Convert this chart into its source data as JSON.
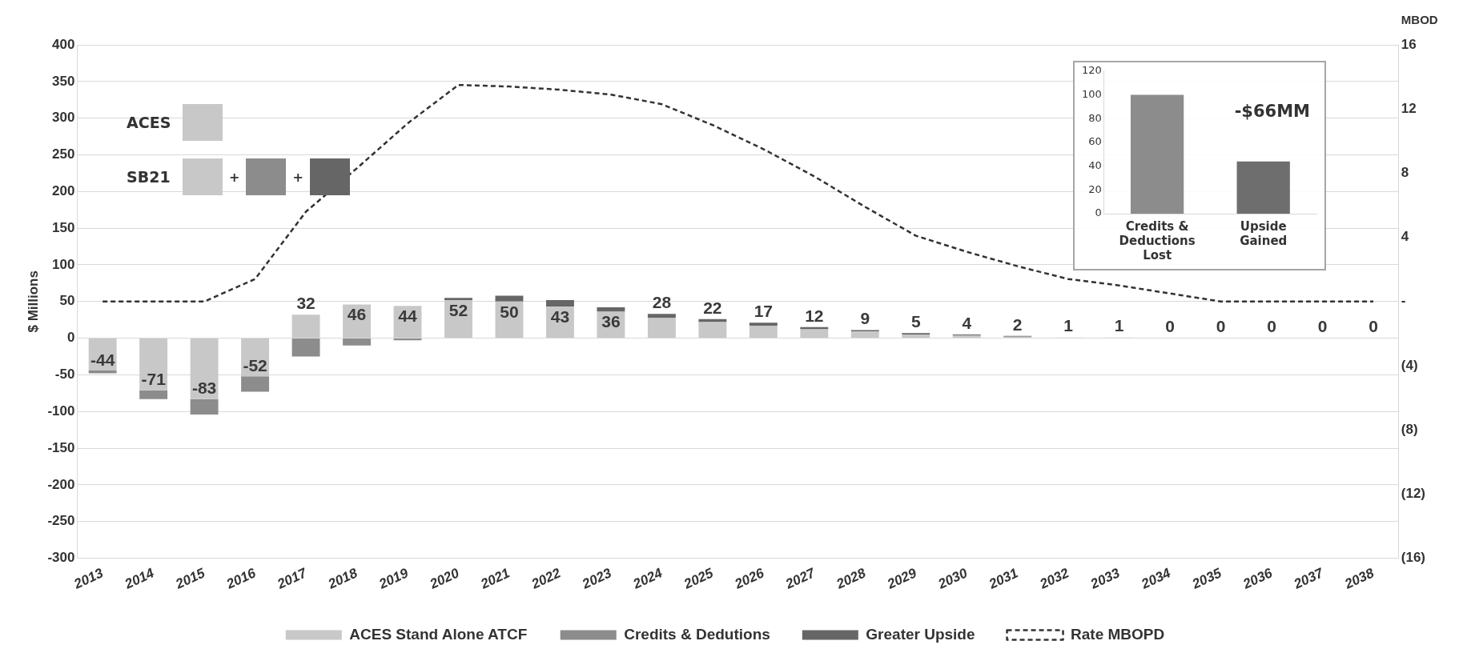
{
  "chart_data": [
    {
      "type": "bar",
      "stacked": true,
      "ylabel": "$ Millions",
      "y2label": "MBOD",
      "categories": [
        "2013",
        "2014",
        "2015",
        "2016",
        "2017",
        "2018",
        "2019",
        "2020",
        "2021",
        "2022",
        "2023",
        "2024",
        "2025",
        "2026",
        "2027",
        "2028",
        "2029",
        "2030",
        "2031",
        "2032",
        "2033",
        "2034",
        "2035",
        "2036",
        "2037",
        "2038"
      ],
      "series": [
        {
          "name": "ACES Stand Alone ATCF",
          "color": "#c8c8c8",
          "values": [
            -44,
            -71,
            -83,
            -52,
            32,
            46,
            44,
            52,
            50,
            43,
            36,
            28,
            22,
            17,
            12,
            9,
            5,
            4,
            2,
            1,
            1,
            0,
            0,
            0,
            0,
            0
          ],
          "value_labels": [
            "-44",
            "-71",
            "-83",
            "-52",
            "32",
            "46",
            "44",
            "52",
            "50",
            "43",
            "36",
            "28",
            "22",
            "17",
            "12",
            "9",
            "5",
            "4",
            "2",
            "1",
            "1",
            "0",
            "0",
            "0",
            "0",
            "0"
          ]
        },
        {
          "name": "Credits & Dedutions",
          "color": "#8c8c8c",
          "values": [
            -4,
            -12,
            -21,
            -21,
            -25,
            -10,
            -3,
            0,
            0,
            0,
            0,
            0,
            0,
            0,
            0,
            0,
            0,
            0,
            0,
            0,
            0,
            0,
            0,
            0,
            0,
            0
          ]
        },
        {
          "name": "Greater Upside",
          "color": "#666666",
          "values": [
            0,
            0,
            0,
            0,
            0,
            0,
            0,
            3,
            8,
            9,
            6,
            5,
            4,
            4,
            3,
            2,
            2,
            1,
            1,
            0,
            0,
            0,
            0,
            0,
            0,
            0
          ]
        },
        {
          "name": "Rate MBOPD",
          "type": "line",
          "axis": "y2",
          "color": "#333333",
          "line_style": "dashed",
          "marker": "none",
          "values": [
            0,
            0,
            0,
            1.4,
            5.6,
            8.3,
            11.1,
            13.5,
            13.4,
            13.2,
            12.9,
            12.3,
            11.0,
            9.5,
            7.8,
            5.9,
            4.1,
            3.1,
            2.2,
            1.4,
            1.0,
            0.5,
            0,
            0,
            0,
            0
          ]
        }
      ],
      "ylim": [
        -300,
        400
      ],
      "yticks": [
        -300,
        -250,
        -200,
        -150,
        -100,
        -50,
        0,
        50,
        100,
        150,
        200,
        250,
        300,
        350,
        400
      ],
      "y2lim": [
        -16,
        16
      ],
      "y2ticks": [
        {
          "value": -16,
          "label": "(16)"
        },
        {
          "value": -12,
          "label": "(12)"
        },
        {
          "value": -8,
          "label": "(8)"
        },
        {
          "value": -4,
          "label": "(4)"
        },
        {
          "value": 0,
          "label": "-"
        },
        4,
        8,
        12,
        16
      ],
      "grid": "y",
      "legend": "bottom",
      "annotations": [
        "ACES",
        "SB21",
        "+",
        "+"
      ]
    },
    {
      "type": "bar",
      "categories": [
        "Credits & Deductions Lost",
        "Upside Gained"
      ],
      "values": [
        100,
        44
      ],
      "colors": [
        "#8c8c8c",
        "#6e6e6e"
      ],
      "ylim": [
        0,
        120
      ],
      "yticks": [
        0,
        20,
        40,
        60,
        80,
        100,
        120
      ],
      "grid": false,
      "legend": false,
      "annotations": [
        "-$66MM"
      ]
    }
  ]
}
